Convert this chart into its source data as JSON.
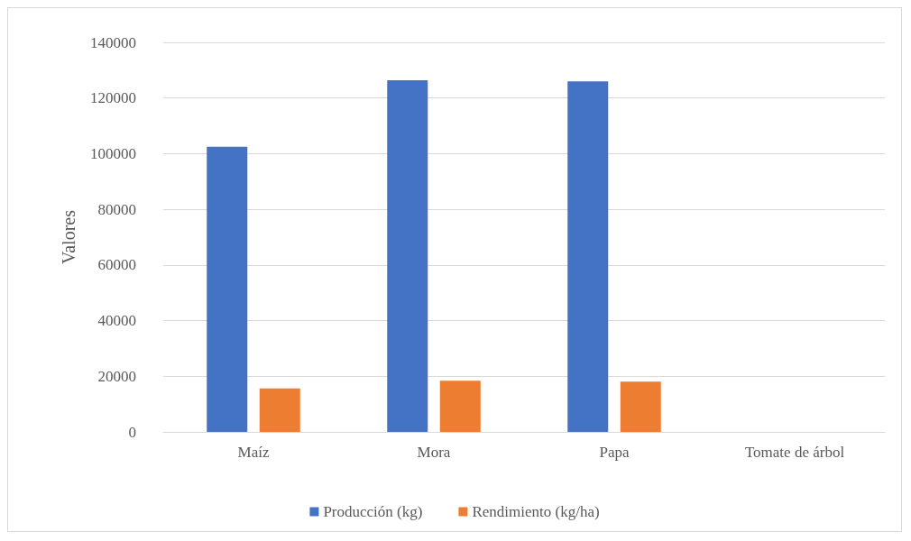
{
  "chart_data": {
    "type": "bar",
    "ylabel": "Valores",
    "categories": [
      "Maíz",
      "Mora",
      "Papa",
      "Tomate de árbol"
    ],
    "series": [
      {
        "name": "Producción (kg)",
        "color": "#4472c4",
        "values": [
          102500,
          126400,
          126000,
          0
        ]
      },
      {
        "name": "Rendimiento (kg/ha)",
        "color": "#ed7d31",
        "values": [
          15600,
          18400,
          18100,
          0
        ]
      }
    ],
    "ylim": [
      0,
      140000
    ],
    "yticks": [
      0,
      20000,
      40000,
      60000,
      80000,
      100000,
      120000,
      140000
    ],
    "grid": "y",
    "legend": "bottom"
  }
}
